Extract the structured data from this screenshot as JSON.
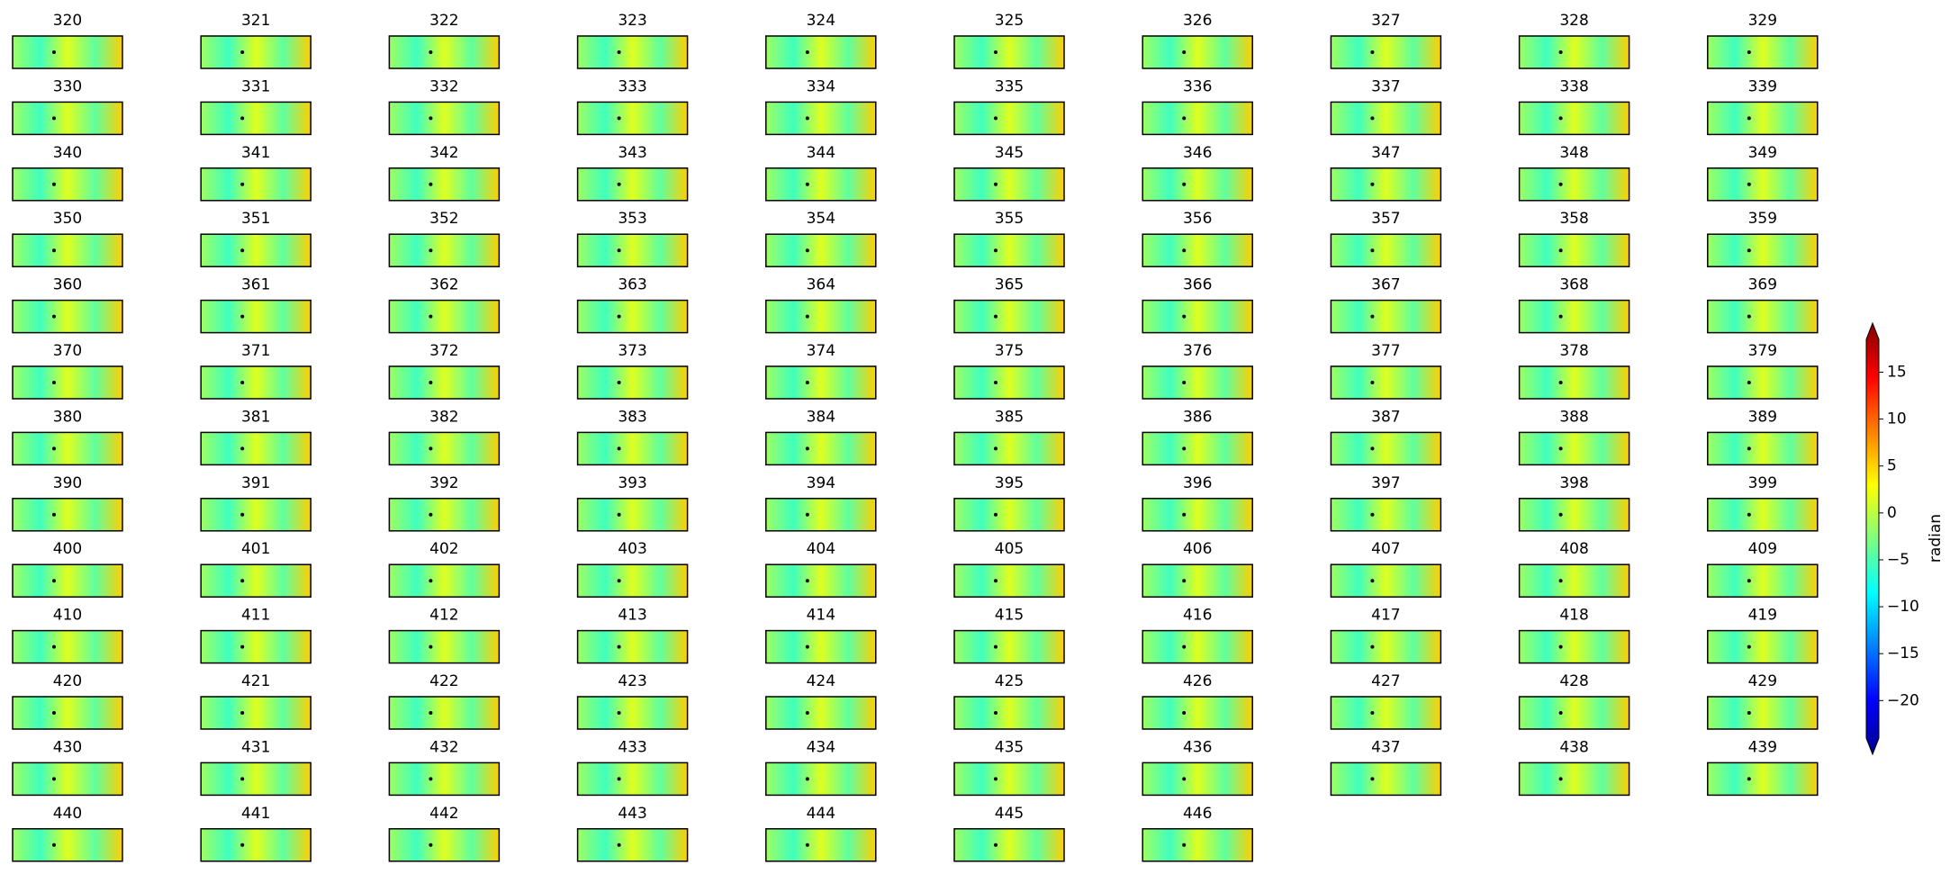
{
  "chart_data": {
    "type": "heatmap-grid",
    "panels": [
      320,
      321,
      322,
      323,
      324,
      325,
      326,
      327,
      328,
      329,
      330,
      331,
      332,
      333,
      334,
      335,
      336,
      337,
      338,
      339,
      340,
      341,
      342,
      343,
      344,
      345,
      346,
      347,
      348,
      349,
      350,
      351,
      352,
      353,
      354,
      355,
      356,
      357,
      358,
      359,
      360,
      361,
      362,
      363,
      364,
      365,
      366,
      367,
      368,
      369,
      370,
      371,
      372,
      373,
      374,
      375,
      376,
      377,
      378,
      379,
      380,
      381,
      382,
      383,
      384,
      385,
      386,
      387,
      388,
      389,
      390,
      391,
      392,
      393,
      394,
      395,
      396,
      397,
      398,
      399,
      400,
      401,
      402,
      403,
      404,
      405,
      406,
      407,
      408,
      409,
      410,
      411,
      412,
      413,
      414,
      415,
      416,
      417,
      418,
      419,
      420,
      421,
      422,
      423,
      424,
      425,
      426,
      427,
      428,
      429,
      430,
      431,
      432,
      433,
      434,
      435,
      436,
      437,
      438,
      439,
      440,
      441,
      442,
      443,
      444,
      445,
      446
    ],
    "colorbar": {
      "label": "radian",
      "ylim": [
        -24,
        18.5
      ],
      "yticks": [
        {
          "value": -20,
          "label": "−20"
        },
        {
          "value": -15,
          "label": "−15"
        },
        {
          "value": -10,
          "label": "−10"
        },
        {
          "value": -5,
          "label": "−5"
        },
        0,
        5,
        10,
        15
      ]
    }
  }
}
